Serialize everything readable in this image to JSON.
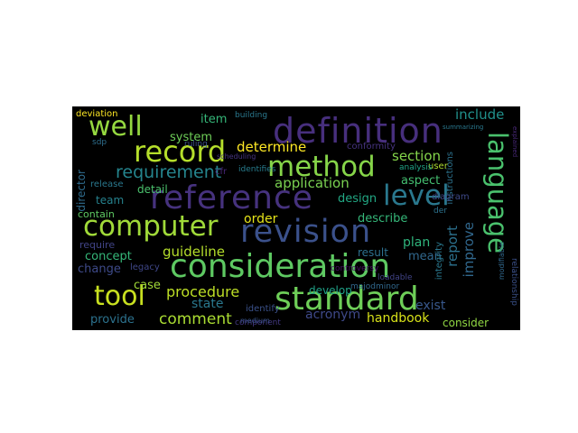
{
  "wordcloud": {
    "background": "#000000",
    "words": [
      {
        "text": "definition",
        "color": "#472f7d"
      },
      {
        "text": "reference",
        "color": "#46327e"
      },
      {
        "text": "revision",
        "color": "#3b518b"
      },
      {
        "text": "consideration",
        "color": "#5ec962"
      },
      {
        "text": "standard",
        "color": "#6ece58"
      },
      {
        "text": "computer",
        "color": "#a0da39"
      },
      {
        "text": "record",
        "color": "#b5de2b"
      },
      {
        "text": "method",
        "color": "#86d549"
      },
      {
        "text": "level",
        "color": "#2a788e"
      },
      {
        "text": "language",
        "color": "#4ac16d"
      },
      {
        "text": "tool",
        "color": "#c8e020"
      },
      {
        "text": "well",
        "color": "#95d840"
      },
      {
        "text": "requirement",
        "color": "#25858e"
      },
      {
        "text": "procedure",
        "color": "#bddf26"
      },
      {
        "text": "comment",
        "color": "#aadc32"
      },
      {
        "text": "application",
        "color": "#7ad151"
      },
      {
        "text": "determine",
        "color": "#fde725"
      },
      {
        "text": "guideline",
        "color": "#b5de2b"
      },
      {
        "text": "include",
        "color": "#21918c"
      },
      {
        "text": "section",
        "color": "#84d44b"
      },
      {
        "text": "report",
        "color": "#2c718e"
      },
      {
        "text": "improve",
        "color": "#31688e"
      },
      {
        "text": "handbook",
        "color": "#d8e219"
      },
      {
        "text": "acronym",
        "color": "#3e4989"
      },
      {
        "text": "describe",
        "color": "#35b779"
      },
      {
        "text": "aspect",
        "color": "#44bf70"
      },
      {
        "text": "design",
        "color": "#22a884"
      },
      {
        "text": "order",
        "color": "#e5e419"
      },
      {
        "text": "plan",
        "color": "#2fb47c"
      },
      {
        "text": "result",
        "color": "#2d708e"
      },
      {
        "text": "mean",
        "color": "#31688e"
      },
      {
        "text": "exist",
        "color": "#38588c"
      },
      {
        "text": "consider",
        "color": "#90d743"
      },
      {
        "text": "state",
        "color": "#2a788e"
      },
      {
        "text": "provide",
        "color": "#2c728e"
      },
      {
        "text": "case",
        "color": "#a2da37"
      },
      {
        "text": "change",
        "color": "#3e4a89"
      },
      {
        "text": "concept",
        "color": "#35b779"
      },
      {
        "text": "require",
        "color": "#414487"
      },
      {
        "text": "contain",
        "color": "#5ec962"
      },
      {
        "text": "team",
        "color": "#26828e"
      },
      {
        "text": "detail",
        "color": "#4ac16d"
      },
      {
        "text": "release",
        "color": "#2a788e"
      },
      {
        "text": "director",
        "color": "#2f6c8e"
      },
      {
        "text": "system",
        "color": "#6ece58"
      },
      {
        "text": "item",
        "color": "#35b779"
      },
      {
        "text": "deviation",
        "color": "#fde725"
      },
      {
        "text": "develop",
        "color": "#1fa187"
      },
      {
        "text": "identify",
        "color": "#3b528b"
      },
      {
        "text": "component",
        "color": "#443983"
      },
      {
        "text": "integrity",
        "color": "#2a788e"
      },
      {
        "text": "instructions",
        "color": "#2c728e"
      },
      {
        "text": "user",
        "color": "#addc30"
      },
      {
        "text": "analysis",
        "color": "#20a386"
      },
      {
        "text": "conformity",
        "color": "#46337f"
      },
      {
        "text": "legacy",
        "color": "#3f4788"
      },
      {
        "text": "building",
        "color": "#2a788e"
      },
      {
        "text": "identifies",
        "color": "#287d8e"
      },
      {
        "text": "medium",
        "color": "#3a548c"
      },
      {
        "text": "loadable",
        "color": "#414487"
      },
      {
        "text": "relationship",
        "color": "#3b528b"
      },
      {
        "text": "sdp",
        "color": "#2e6f8e"
      },
      {
        "text": "der",
        "color": "#2c728e"
      },
      {
        "text": "cfr",
        "color": "#482677"
      },
      {
        "text": "summarizing",
        "color": "#2a788e"
      },
      {
        "text": "diagram",
        "color": "#3e4a89"
      },
      {
        "text": "ruling",
        "color": "#3b518b"
      },
      {
        "text": "majodminor",
        "color": "#31688e"
      },
      {
        "text": "modifiable",
        "color": "#31688e"
      },
      {
        "text": "explained",
        "color": "#482878"
      },
      {
        "text": "controversy",
        "color": "#471063"
      },
      {
        "text": "scheduling",
        "color": "#463480"
      }
    ]
  }
}
